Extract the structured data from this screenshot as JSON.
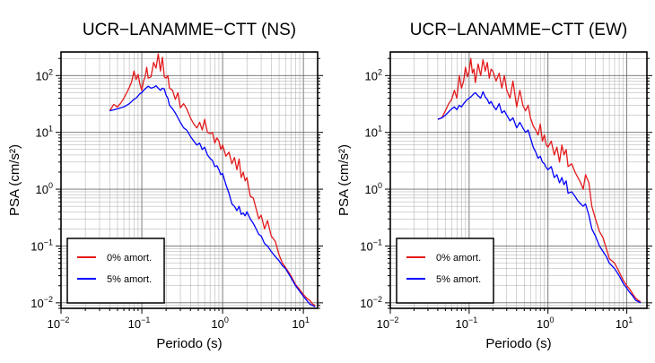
{
  "chart_data": [
    {
      "type": "line",
      "title": "UCR−LANAMME−CTT (NS)",
      "xlabel": "Periodo (s)",
      "ylabel": "PSA (cm/s²)",
      "xscale": "log",
      "yscale": "log",
      "xlim": [
        0.01,
        15
      ],
      "ylim": [
        0.008,
        260
      ],
      "xticks": [
        {
          "value": 0.01,
          "base": "10",
          "exp": "−2"
        },
        {
          "value": 0.1,
          "base": "10",
          "exp": "−1"
        },
        {
          "value": 1,
          "base": "10",
          "exp": "0"
        },
        {
          "value": 10,
          "base": "10",
          "exp": "1"
        }
      ],
      "yticks": [
        {
          "value": 0.01,
          "base": "10",
          "exp": "−2"
        },
        {
          "value": 0.1,
          "base": "10",
          "exp": "−1"
        },
        {
          "value": 1,
          "base": "10",
          "exp": "0"
        },
        {
          "value": 10,
          "base": "10",
          "exp": "1"
        },
        {
          "value": 100,
          "base": "10",
          "exp": "2"
        }
      ],
      "grid": true,
      "legend_position": "bottom-left",
      "series": [
        {
          "name": "0% amort.",
          "color": "#e41a1c",
          "x": [
            0.04,
            0.045,
            0.05,
            0.055,
            0.06,
            0.065,
            0.07,
            0.075,
            0.08,
            0.085,
            0.09,
            0.095,
            0.1,
            0.105,
            0.11,
            0.115,
            0.12,
            0.13,
            0.14,
            0.15,
            0.16,
            0.17,
            0.18,
            0.19,
            0.2,
            0.21,
            0.22,
            0.24,
            0.26,
            0.28,
            0.3,
            0.33,
            0.36,
            0.4,
            0.44,
            0.48,
            0.52,
            0.56,
            0.6,
            0.65,
            0.7,
            0.75,
            0.8,
            0.85,
            0.9,
            0.95,
            1.0,
            1.1,
            1.2,
            1.3,
            1.4,
            1.5,
            1.6,
            1.7,
            1.8,
            1.9,
            2.0,
            2.2,
            2.4,
            2.6,
            2.8,
            3.0,
            3.3,
            3.6,
            4.0,
            4.5,
            5.0,
            5.5,
            6.0,
            7.0,
            8.0,
            9.0,
            10.0,
            11.0,
            12.0,
            13.0,
            14.0
          ],
          "y": [
            24,
            31,
            28,
            33,
            40,
            50,
            62,
            78,
            120,
            85,
            105,
            70,
            55,
            80,
            95,
            140,
            90,
            95,
            170,
            135,
            240,
            120,
            210,
            95,
            90,
            100,
            60,
            55,
            38,
            50,
            27,
            32,
            26,
            18,
            14,
            12,
            15,
            11,
            17,
            10,
            9.5,
            10,
            6.5,
            8,
            7,
            5,
            6,
            3.8,
            4.5,
            2.8,
            3.6,
            2.2,
            3.4,
            1.6,
            2.0,
            1.4,
            1.6,
            0.75,
            0.7,
            0.45,
            0.3,
            0.35,
            0.2,
            0.28,
            0.15,
            0.12,
            0.07,
            0.05,
            0.042,
            0.03,
            0.021,
            0.017,
            0.014,
            0.012,
            0.011,
            0.0095,
            0.009
          ]
        },
        {
          "name": "5% amort.",
          "color": "#0000ff",
          "x": [
            0.04,
            0.045,
            0.05,
            0.055,
            0.06,
            0.065,
            0.07,
            0.075,
            0.08,
            0.085,
            0.09,
            0.095,
            0.1,
            0.105,
            0.11,
            0.115,
            0.12,
            0.13,
            0.14,
            0.15,
            0.16,
            0.17,
            0.18,
            0.19,
            0.2,
            0.21,
            0.22,
            0.24,
            0.26,
            0.28,
            0.3,
            0.33,
            0.36,
            0.4,
            0.44,
            0.48,
            0.52,
            0.56,
            0.6,
            0.65,
            0.7,
            0.75,
            0.8,
            0.85,
            0.9,
            0.95,
            1.0,
            1.1,
            1.2,
            1.3,
            1.4,
            1.5,
            1.6,
            1.7,
            1.8,
            1.9,
            2.0,
            2.2,
            2.4,
            2.6,
            2.8,
            3.0,
            3.3,
            3.6,
            4.0,
            4.5,
            5.0,
            5.5,
            6.0,
            7.0,
            8.0,
            9.0,
            10.0,
            11.0,
            12.0,
            13.0,
            14.0
          ],
          "y": [
            24,
            25,
            26,
            27,
            28,
            30,
            32,
            35,
            38,
            40,
            44,
            48,
            50,
            55,
            58,
            62,
            65,
            60,
            62,
            66,
            60,
            55,
            60,
            58,
            45,
            40,
            30,
            26,
            22,
            18,
            15,
            12,
            11,
            8.5,
            7,
            6,
            6.5,
            5,
            5.5,
            4,
            3.5,
            3.2,
            2.5,
            2.6,
            2.2,
            1.8,
            1.9,
            1.2,
            0.85,
            0.55,
            0.5,
            0.42,
            0.5,
            0.36,
            0.38,
            0.34,
            0.4,
            0.3,
            0.25,
            0.2,
            0.16,
            0.15,
            0.11,
            0.1,
            0.08,
            0.065,
            0.055,
            0.045,
            0.04,
            0.028,
            0.02,
            0.016,
            0.013,
            0.011,
            0.0095,
            0.009,
            0.0085
          ]
        }
      ]
    },
    {
      "type": "line",
      "title": "UCR−LANAMME−CTT (EW)",
      "xlabel": "Periodo (s)",
      "ylabel": "PSA (cm/s²)",
      "xscale": "log",
      "yscale": "log",
      "xlim": [
        0.01,
        18
      ],
      "ylim": [
        0.008,
        260
      ],
      "xticks": [
        {
          "value": 0.01,
          "base": "10",
          "exp": "−2"
        },
        {
          "value": 0.1,
          "base": "10",
          "exp": "−1"
        },
        {
          "value": 1,
          "base": "10",
          "exp": "0"
        },
        {
          "value": 10,
          "base": "10",
          "exp": "1"
        }
      ],
      "yticks": [
        {
          "value": 0.01,
          "base": "10",
          "exp": "−2"
        },
        {
          "value": 0.1,
          "base": "10",
          "exp": "−1"
        },
        {
          "value": 1,
          "base": "10",
          "exp": "0"
        },
        {
          "value": 10,
          "base": "10",
          "exp": "1"
        },
        {
          "value": 100,
          "base": "10",
          "exp": "2"
        }
      ],
      "grid": true,
      "legend_position": "bottom-left",
      "series": [
        {
          "name": "0% amort.",
          "color": "#e41a1c",
          "x": [
            0.04,
            0.045,
            0.05,
            0.055,
            0.06,
            0.065,
            0.07,
            0.075,
            0.08,
            0.085,
            0.09,
            0.095,
            0.1,
            0.105,
            0.11,
            0.115,
            0.12,
            0.13,
            0.14,
            0.15,
            0.16,
            0.17,
            0.18,
            0.19,
            0.2,
            0.22,
            0.24,
            0.26,
            0.28,
            0.3,
            0.33,
            0.36,
            0.4,
            0.44,
            0.48,
            0.52,
            0.56,
            0.6,
            0.65,
            0.7,
            0.75,
            0.8,
            0.85,
            0.9,
            0.95,
            1.0,
            1.1,
            1.2,
            1.3,
            1.4,
            1.5,
            1.6,
            1.7,
            1.8,
            2.0,
            2.2,
            2.4,
            2.6,
            2.8,
            3.0,
            3.3,
            3.6,
            4.0,
            4.5,
            5.0,
            5.5,
            6.0,
            7.0,
            8.0,
            9.0,
            10.0,
            11.0,
            12.0,
            13.0,
            14.0,
            15.0
          ],
          "y": [
            17,
            18,
            24,
            32,
            38,
            55,
            40,
            100,
            60,
            80,
            140,
            95,
            120,
            200,
            110,
            130,
            75,
            160,
            100,
            190,
            120,
            170,
            90,
            130,
            120,
            80,
            110,
            60,
            100,
            55,
            40,
            80,
            28,
            55,
            30,
            24,
            30,
            18,
            13,
            11,
            9,
            14,
            7,
            9,
            6,
            5.5,
            7,
            4,
            5.5,
            3,
            6,
            4,
            5,
            2.5,
            2.8,
            2.0,
            1.6,
            1.3,
            1.0,
            1.8,
            1.3,
            0.5,
            0.3,
            0.18,
            0.14,
            0.09,
            0.06,
            0.05,
            0.035,
            0.025,
            0.02,
            0.017,
            0.014,
            0.012,
            0.011,
            0.0105
          ]
        },
        {
          "name": "5% amort.",
          "color": "#0000ff",
          "x": [
            0.04,
            0.045,
            0.05,
            0.055,
            0.06,
            0.065,
            0.07,
            0.075,
            0.08,
            0.085,
            0.09,
            0.095,
            0.1,
            0.105,
            0.11,
            0.115,
            0.12,
            0.13,
            0.14,
            0.15,
            0.16,
            0.17,
            0.18,
            0.19,
            0.2,
            0.22,
            0.24,
            0.26,
            0.28,
            0.3,
            0.33,
            0.36,
            0.4,
            0.44,
            0.48,
            0.52,
            0.56,
            0.6,
            0.65,
            0.7,
            0.75,
            0.8,
            0.85,
            0.9,
            0.95,
            1.0,
            1.1,
            1.2,
            1.3,
            1.4,
            1.5,
            1.6,
            1.7,
            1.8,
            2.0,
            2.2,
            2.4,
            2.6,
            2.8,
            3.0,
            3.3,
            3.6,
            4.0,
            4.5,
            5.0,
            5.5,
            6.0,
            7.0,
            8.0,
            9.0,
            10.0,
            11.0,
            12.0,
            13.0,
            14.0,
            15.0
          ],
          "y": [
            17,
            18,
            20,
            23,
            26,
            28,
            25,
            30,
            28,
            32,
            35,
            38,
            40,
            42,
            45,
            48,
            50,
            44,
            40,
            52,
            42,
            38,
            32,
            35,
            30,
            25,
            32,
            22,
            24,
            20,
            16,
            18,
            12,
            15,
            12,
            10,
            11,
            8,
            5.5,
            4.5,
            3.5,
            3.8,
            3,
            2.8,
            2.4,
            2.2,
            2.5,
            1.6,
            1.8,
            1.3,
            1.6,
            1.2,
            1.4,
            0.85,
            0.9,
            0.75,
            0.62,
            0.55,
            0.5,
            0.55,
            0.35,
            0.2,
            0.15,
            0.1,
            0.08,
            0.065,
            0.05,
            0.04,
            0.03,
            0.022,
            0.018,
            0.015,
            0.013,
            0.011,
            0.0105,
            0.01
          ]
        }
      ]
    }
  ]
}
